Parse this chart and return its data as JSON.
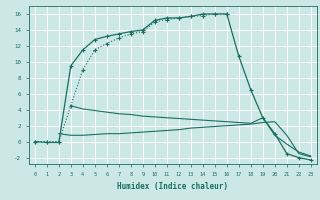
{
  "xlabel": "Humidex (Indice chaleur)",
  "bg_color": "#cce8e4",
  "grid_color": "#ffffff",
  "line_color": "#1a6e62",
  "xlim": [
    -0.5,
    23.5
  ],
  "ylim": [
    -2.8,
    17.0
  ],
  "yticks": [
    -2,
    0,
    2,
    4,
    6,
    8,
    10,
    12,
    14,
    16
  ],
  "xticks": [
    0,
    1,
    2,
    3,
    4,
    5,
    6,
    7,
    8,
    9,
    10,
    11,
    12,
    13,
    14,
    15,
    16,
    17,
    18,
    19,
    20,
    21,
    22,
    23
  ],
  "curve_solid_x": [
    0,
    1,
    2,
    3,
    4,
    5,
    6,
    7,
    8,
    9,
    10,
    11,
    12,
    13,
    14,
    15,
    16,
    17,
    18,
    19,
    20,
    21,
    22,
    23
  ],
  "curve_solid_y": [
    0,
    -0.1,
    -0.1,
    9.5,
    11.5,
    12.8,
    13.2,
    13.5,
    13.8,
    14.0,
    15.2,
    15.5,
    15.5,
    15.7,
    16.0,
    16.0,
    16.0,
    10.7,
    6.5,
    3.0,
    1.0,
    -1.5,
    -2.0,
    -2.3
  ],
  "curve_dotted_x": [
    0,
    1,
    2,
    3,
    4,
    5,
    6,
    7,
    8,
    9,
    10,
    11,
    12,
    13,
    14,
    15,
    16
  ],
  "curve_dotted_y": [
    0,
    0,
    0,
    4.5,
    9.0,
    11.5,
    12.3,
    13.0,
    13.5,
    13.8,
    15.0,
    15.3,
    15.5,
    15.7,
    15.8,
    16.0,
    16.0
  ],
  "curve_decline_x": [
    3,
    4,
    5,
    6,
    7,
    8,
    9,
    10,
    11,
    12,
    13,
    14,
    15,
    16,
    17,
    18,
    19,
    20,
    21,
    22,
    23
  ],
  "curve_decline_y": [
    4.5,
    4.1,
    3.9,
    3.7,
    3.5,
    3.4,
    3.2,
    3.1,
    3.0,
    2.9,
    2.8,
    2.7,
    2.6,
    2.5,
    2.4,
    2.3,
    3.0,
    0.8,
    -0.3,
    -1.3,
    -1.8
  ],
  "curve_flat_x": [
    2,
    3,
    4,
    5,
    6,
    7,
    8,
    9,
    10,
    11,
    12,
    13,
    14,
    15,
    16,
    17,
    18,
    19,
    20,
    21,
    22,
    23
  ],
  "curve_flat_y": [
    1.0,
    0.8,
    0.8,
    0.9,
    1.0,
    1.0,
    1.1,
    1.2,
    1.3,
    1.4,
    1.5,
    1.7,
    1.8,
    1.9,
    2.0,
    2.1,
    2.2,
    2.4,
    2.5,
    0.8,
    -1.5,
    -1.9
  ]
}
